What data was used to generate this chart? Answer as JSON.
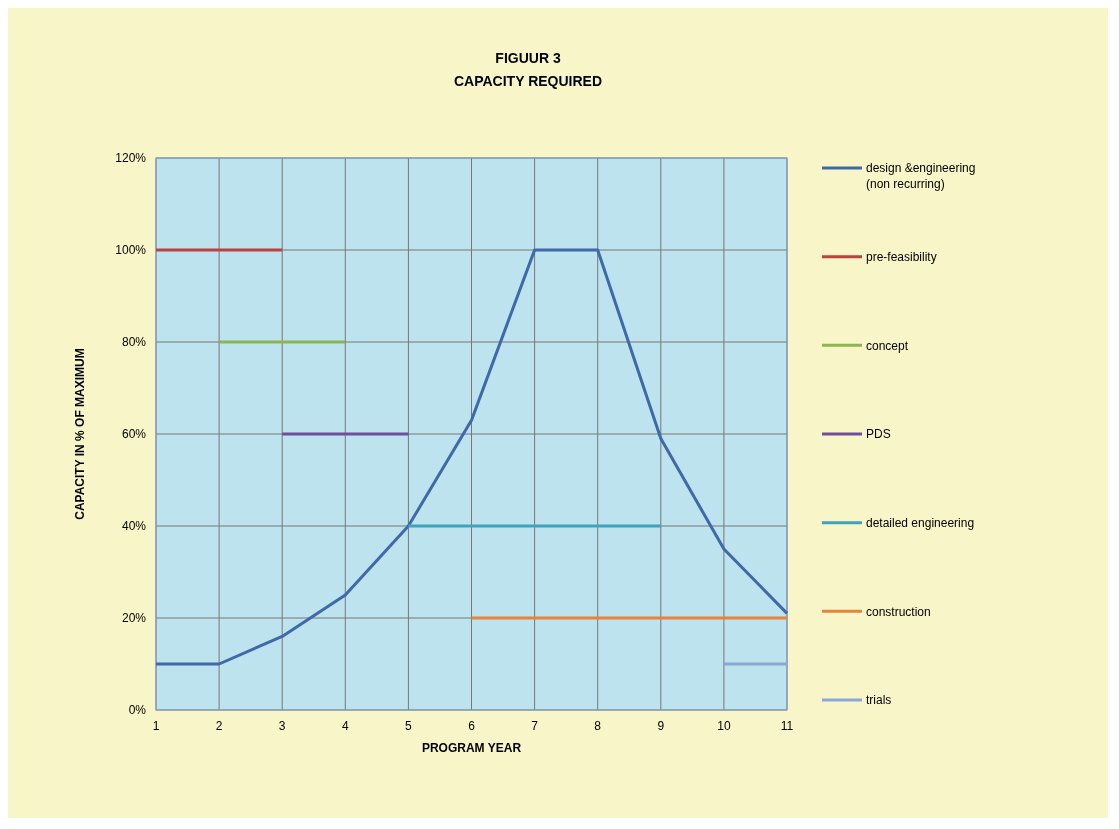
{
  "chart_data": {
    "type": "line",
    "title": "FIGUUR 3",
    "subtitle": "CAPACITY REQUIRED",
    "xlabel": "PROGRAM YEAR",
    "ylabel": "CAPACITY IN % OF MAXIMUM",
    "xlim": [
      1,
      11
    ],
    "xticks": [
      1,
      2,
      3,
      4,
      5,
      6,
      7,
      8,
      9,
      10,
      11
    ],
    "ylim": [
      0,
      120
    ],
    "yticks": [
      {
        "value": 0,
        "label": "0%"
      },
      {
        "value": 20,
        "label": "20%"
      },
      {
        "value": 40,
        "label": "40%"
      },
      {
        "value": 60,
        "label": "60%"
      },
      {
        "value": 80,
        "label": "80%"
      },
      {
        "value": 100,
        "label": "100%"
      },
      {
        "value": 120,
        "label": "120%"
      }
    ],
    "grid": true,
    "legend": "right",
    "marker": "none",
    "series": [
      {
        "name": "design &engineering (non recurring)",
        "color": "#3f69a8",
        "x": [
          1,
          2,
          3,
          4,
          5,
          6,
          7,
          8,
          9,
          10,
          11
        ],
        "values": [
          10,
          10,
          16,
          25,
          40,
          63,
          100,
          100,
          59,
          35,
          21
        ]
      },
      {
        "name": "pre-feasibility",
        "color": "#b9433e",
        "x": [
          1,
          3
        ],
        "values": [
          100,
          100
        ]
      },
      {
        "name": "concept",
        "color": "#8db552",
        "x": [
          2,
          4
        ],
        "values": [
          80,
          80
        ]
      },
      {
        "name": "PDS",
        "color": "#6f4f9a",
        "x": [
          3,
          5
        ],
        "values": [
          60,
          60
        ]
      },
      {
        "name": "detailed engineering",
        "color": "#3ea3bd",
        "x": [
          5,
          9
        ],
        "values": [
          40,
          40
        ]
      },
      {
        "name": "construction",
        "color": "#e5843a",
        "x": [
          6,
          11
        ],
        "values": [
          20,
          20
        ]
      },
      {
        "name": "trials",
        "color": "#8ca7d6",
        "x": [
          10,
          11
        ],
        "values": [
          10,
          10
        ]
      }
    ]
  }
}
